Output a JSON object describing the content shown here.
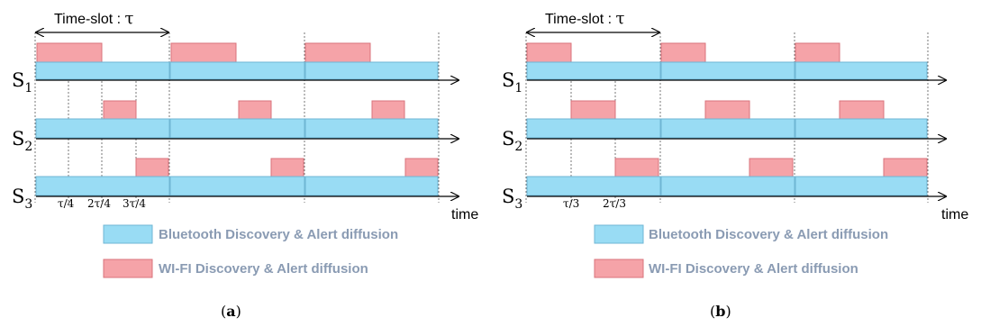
{
  "colors": {
    "bluetooth_fill": "#99dcf4",
    "bluetooth_stroke": "#6fb6d4",
    "wifi_fill": "#f5a3a8",
    "wifi_stroke": "#d9737b",
    "legend_text": "#8a9bb3"
  },
  "panels": [
    {
      "caption_letter": "a",
      "slot_label": "Time-slot : ",
      "slot_symbol": "τ",
      "signals": [
        {
          "name": "S",
          "subscript": "1"
        },
        {
          "name": "S",
          "subscript": "2"
        },
        {
          "name": "S",
          "subscript": "3"
        }
      ],
      "tick_labels": [
        "τ/4",
        "2τ/4",
        "3τ/4"
      ],
      "axis_label": "time",
      "legend": [
        {
          "label": "Bluetooth Discovery & Alert diffusion",
          "kind": "bluetooth"
        },
        {
          "label": "WI-FI Discovery & Alert diffusion",
          "kind": "wifi"
        }
      ]
    },
    {
      "caption_letter": "b",
      "slot_label": "Time-slot : ",
      "slot_symbol": "τ",
      "signals": [
        {
          "name": "S",
          "subscript": "1"
        },
        {
          "name": "S",
          "subscript": "2"
        },
        {
          "name": "S",
          "subscript": "3"
        }
      ],
      "tick_labels": [
        "τ/3",
        "2τ/3"
      ],
      "axis_label": "time",
      "legend": [
        {
          "label": "Bluetooth Discovery & Alert diffusion",
          "kind": "bluetooth"
        },
        {
          "label": "WI-FI Discovery & Alert diffusion",
          "kind": "wifi"
        }
      ]
    }
  ]
}
